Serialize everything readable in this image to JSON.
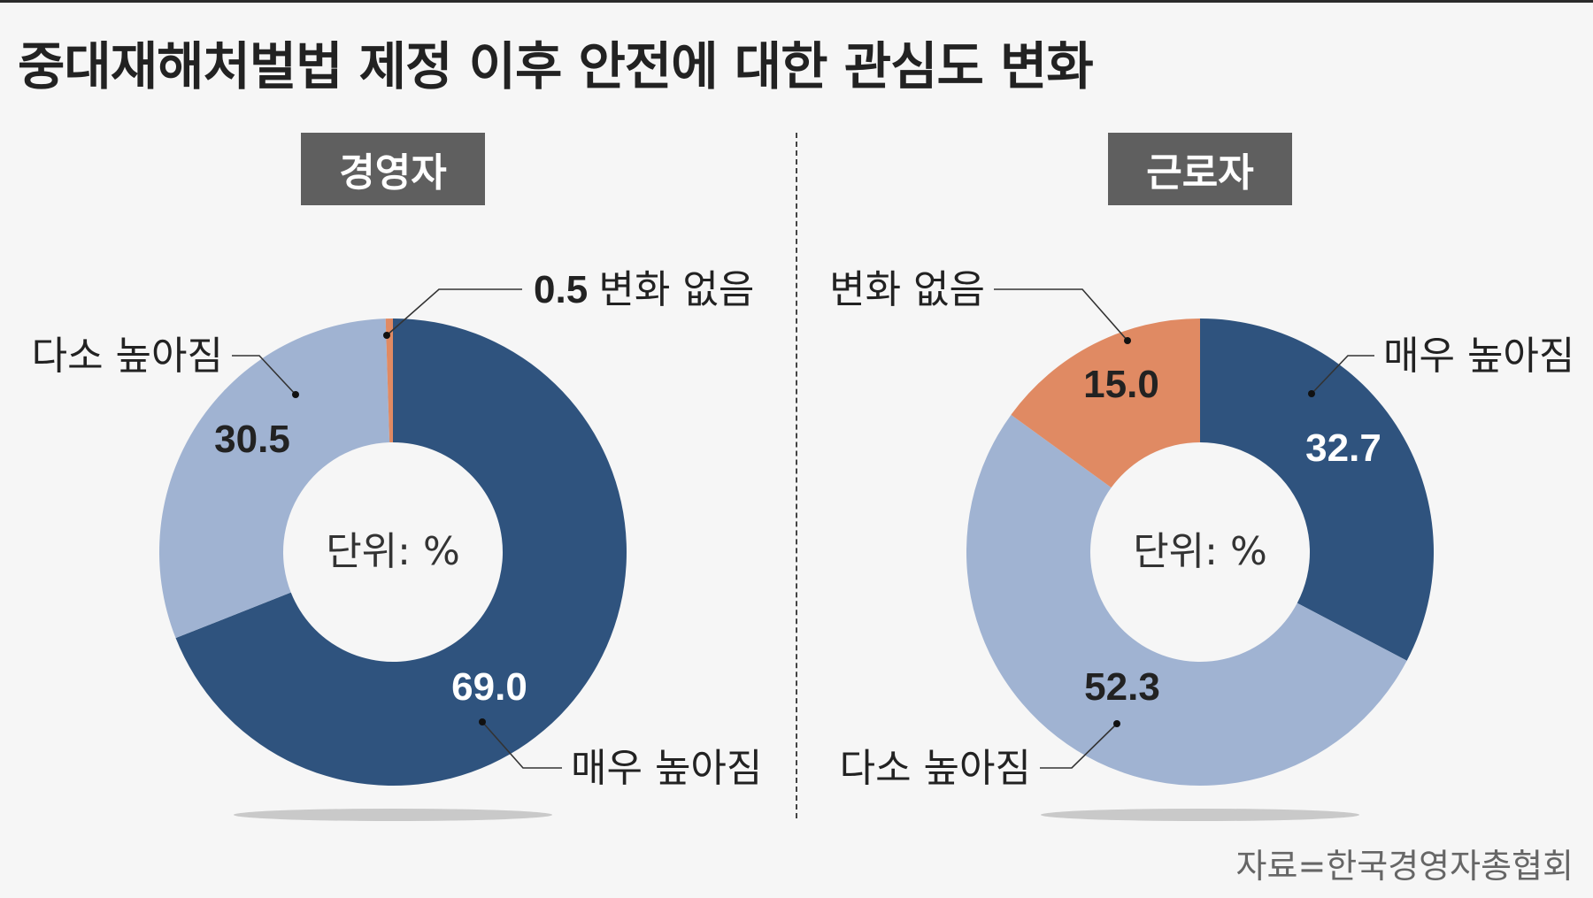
{
  "title": "중대재해처벌법 제정 이후 안전에 대한 관심도 변화",
  "source": "자료=한국경영자총협회",
  "unit_label": "단위: %",
  "colors": {
    "very_increased": "#2f537e",
    "somewhat_increased": "#a0b3d2",
    "no_change": "#e08a63",
    "tag_bg": "#5f5f5f"
  },
  "chart_data": [
    {
      "type": "pie",
      "title": "경영자",
      "center_label": "단위: %",
      "slices": [
        {
          "label": "매우 높아짐",
          "value": 69.0,
          "value_text": "69.0",
          "color": "#2f537e"
        },
        {
          "label": "다소 높아짐",
          "value": 30.5,
          "value_text": "30.5",
          "color": "#a0b3d2"
        },
        {
          "label": "변화 없음",
          "value": 0.5,
          "value_text": "0.5",
          "color": "#e08a63"
        }
      ]
    },
    {
      "type": "pie",
      "title": "근로자",
      "center_label": "단위: %",
      "slices": [
        {
          "label": "매우 높아짐",
          "value": 32.7,
          "value_text": "32.7",
          "color": "#2f537e"
        },
        {
          "label": "다소 높아짐",
          "value": 52.3,
          "value_text": "52.3",
          "color": "#a0b3d2"
        },
        {
          "label": "변화 없음",
          "value": 15.0,
          "value_text": "15.0",
          "color": "#e08a63"
        }
      ]
    }
  ]
}
